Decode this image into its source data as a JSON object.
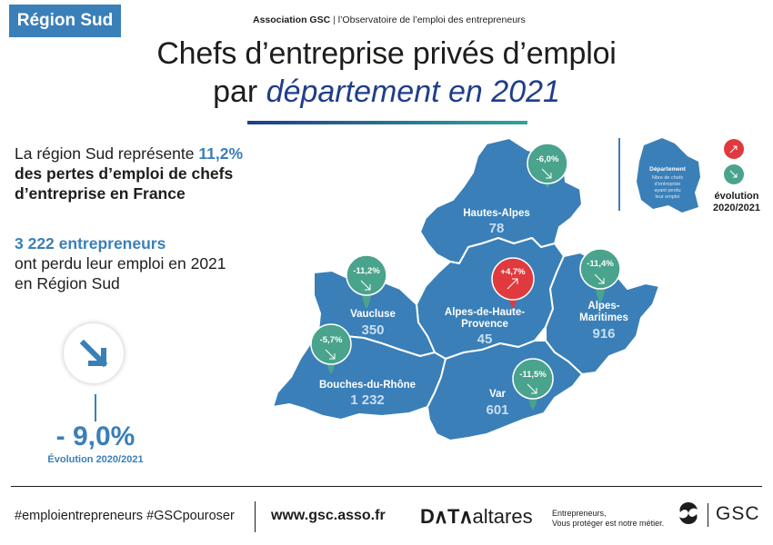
{
  "badge": "Région Sud",
  "header": {
    "organization": "Association GSC",
    "separator": "|",
    "observatory": "l’Observatoire de l’emploi des entrepreneurs"
  },
  "title": {
    "line1": "Chefs d’entreprise privés d’emploi",
    "line2_prefix": "par ",
    "line2_emphasis": "département en 2021"
  },
  "stat_share": {
    "line1_prefix": "La région Sud représente ",
    "value": "11,2%",
    "line2": "des pertes d’emploi de chefs",
    "line3": "d’entreprise en France"
  },
  "stat_count": {
    "value": "3 222 entrepreneurs",
    "line2": "ont perdu leur emploi en 2021",
    "line3": "en Région Sud"
  },
  "overall_evolution": {
    "value": "- 9,0%",
    "label": "Évolution 2020/2021",
    "icon": "arrow-down-right-icon"
  },
  "departments": [
    {
      "name": "Hautes-Alpes",
      "value": "78",
      "evolution": "-6,0%",
      "trend": "down"
    },
    {
      "name": "Alpes-de-Haute-Provence",
      "name_line1": "Alpes-de-Haute-",
      "name_line2": "Provence",
      "value": "45",
      "evolution": "+4,7%",
      "trend": "up"
    },
    {
      "name": "Alpes-Maritimes",
      "name_line1": "Alpes-",
      "name_line2": "Maritimes",
      "value": "916",
      "evolution": "-11,4%",
      "trend": "down"
    },
    {
      "name": "Vaucluse",
      "value": "350",
      "evolution": "-11,2%",
      "trend": "down"
    },
    {
      "name": "Bouches-du-Rhône",
      "value": "1 232",
      "evolution": "-5,7%",
      "trend": "down"
    },
    {
      "name": "Var",
      "value": "601",
      "evolution": "-11,5%",
      "trend": "down"
    }
  ],
  "legend": {
    "dept_title": "Département",
    "dept_line1": "Nbre de chefs",
    "dept_line2": "d’entreprise",
    "dept_line3": "ayant perdu",
    "dept_line4": "leur emploi",
    "evolution_line1": "évolution",
    "evolution_line2": "2020/2021"
  },
  "colors": {
    "map_blue": "#3a7fb8",
    "increase_red": "#e03a3e",
    "decrease_green": "#4aa38c",
    "title_navy": "#1f3e8a"
  },
  "footer": {
    "hashtags": "#emploientrepreneurs #GSCpouroser",
    "website": "www.gsc.asso.fr",
    "partner_mark": "D∧T∧",
    "partner_name": "altares",
    "tagline_line1": "Entrepreneurs,",
    "tagline_line2": "Vous protéger est notre métier.",
    "brand": "GSC"
  }
}
